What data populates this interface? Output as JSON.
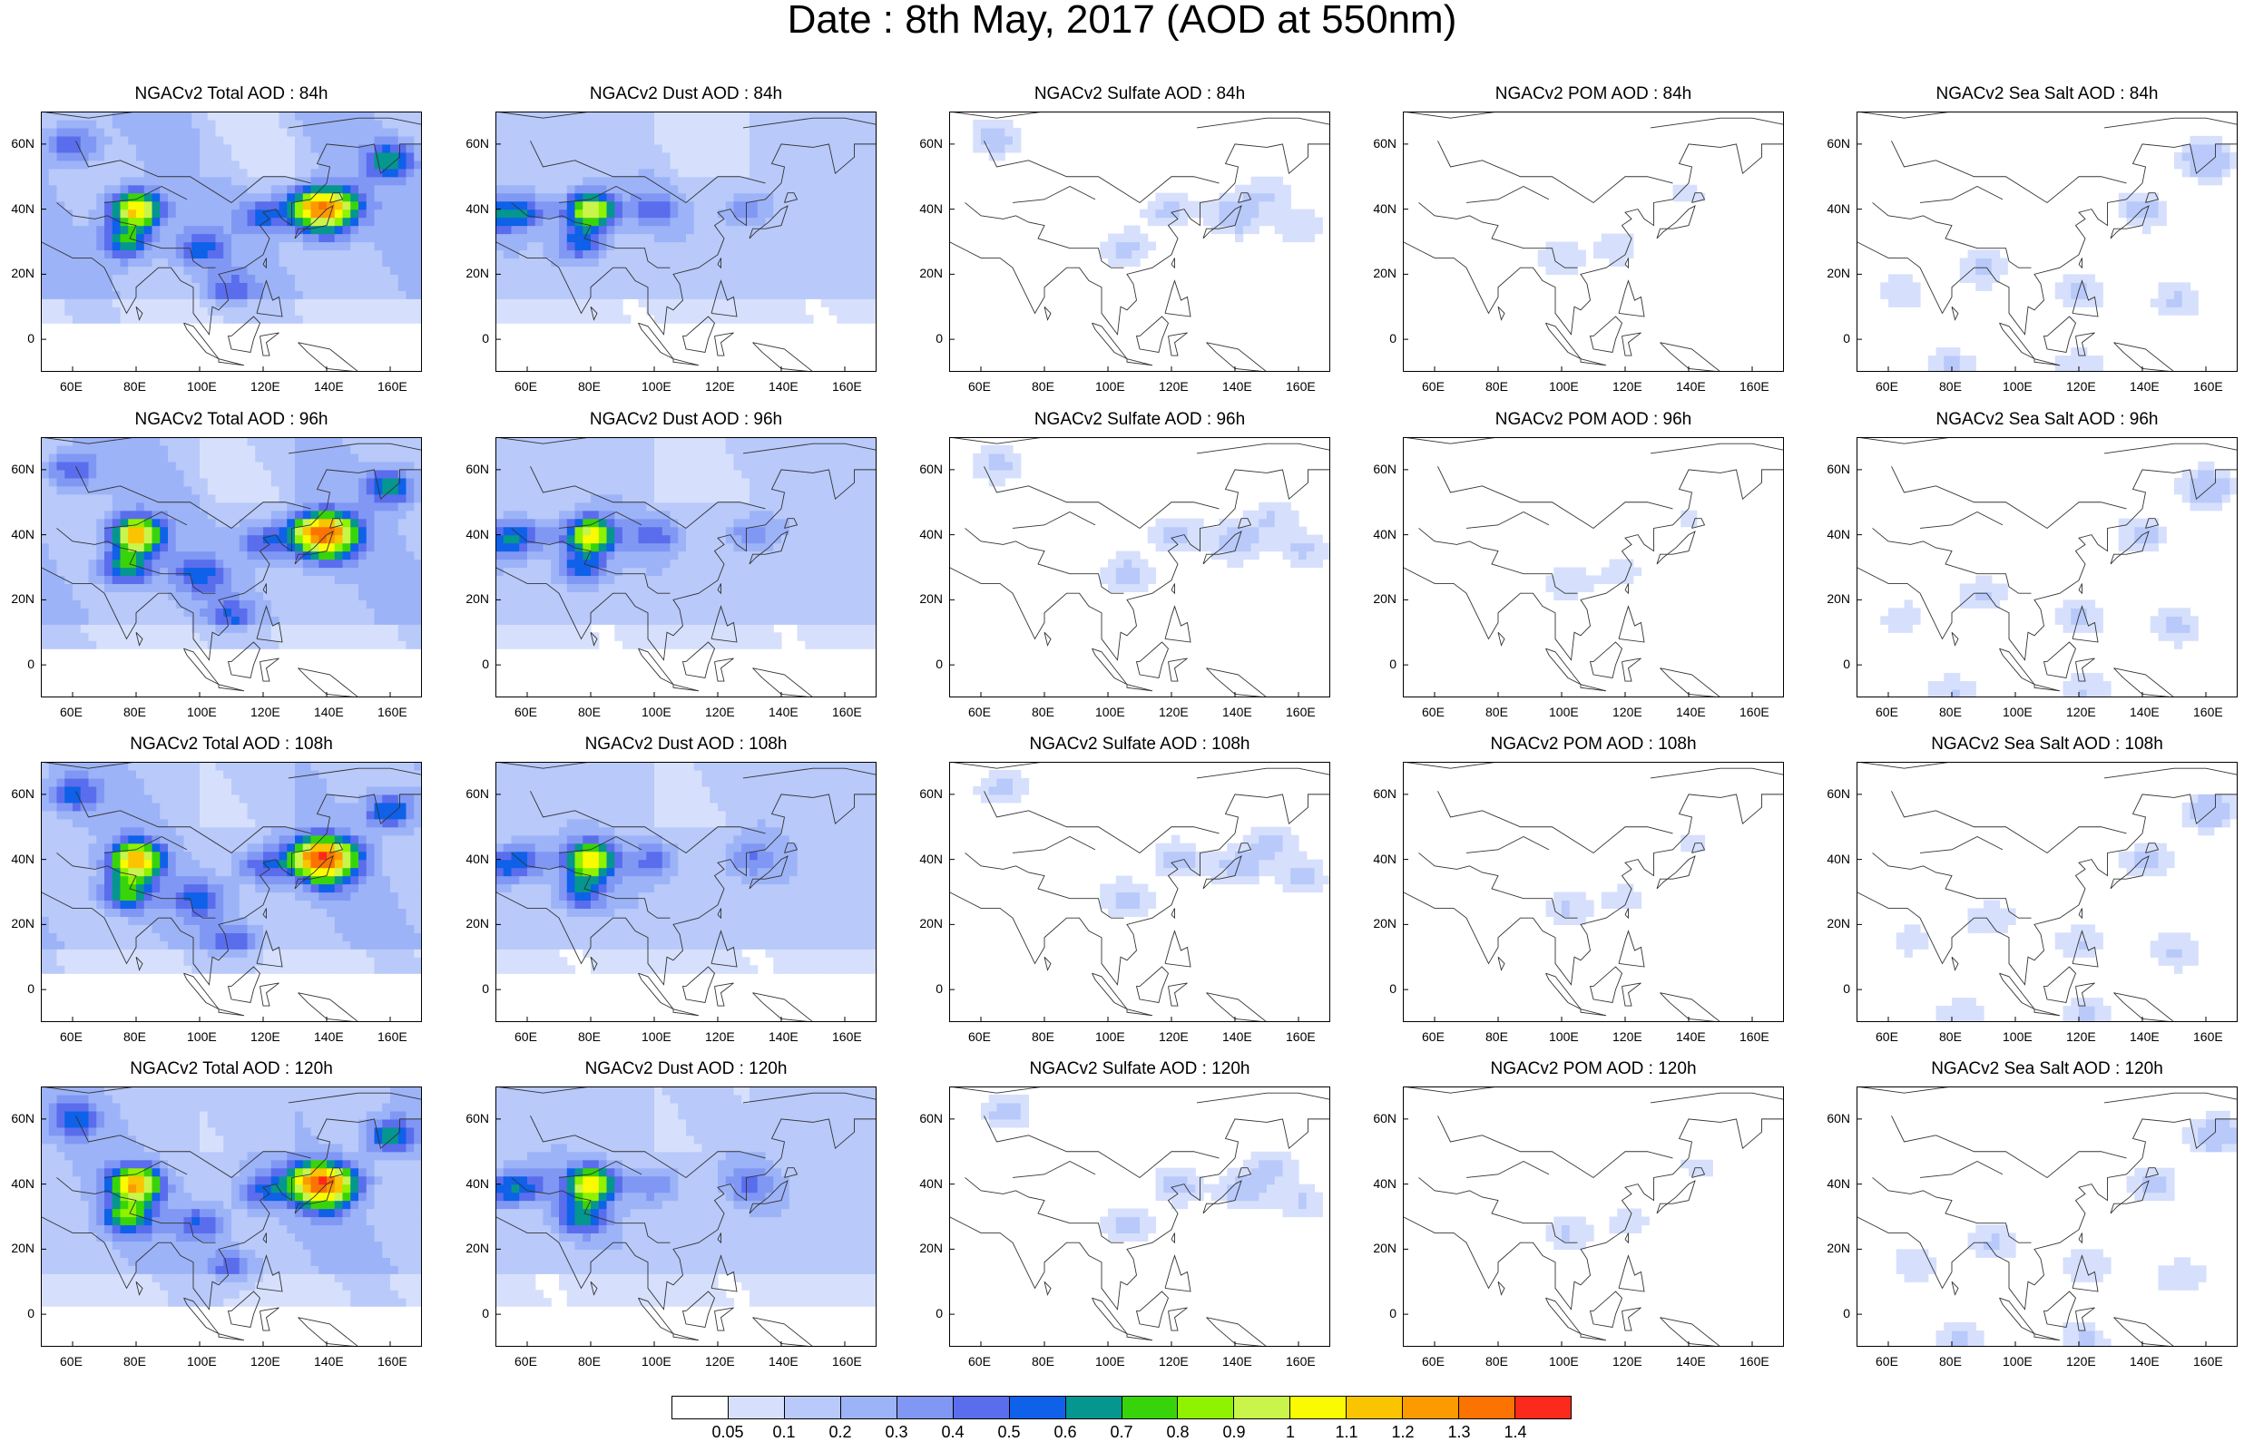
{
  "title": "Date : 8th May, 2017 (AOD at 550nm)",
  "rows": [
    {
      "hour": "84h",
      "titles": [
        "NGACv2 Total AOD : 84h",
        "NGACv2 Dust AOD : 84h",
        "NGACv2 Sulfate AOD : 84h",
        "NGACv2 POM AOD : 84h",
        "NGACv2 Sea Salt AOD : 84h"
      ]
    },
    {
      "hour": "96h",
      "titles": [
        "NGACv2 Total AOD : 96h",
        "NGACv2 Dust AOD : 96h",
        "NGACv2 Sulfate AOD : 96h",
        "NGACv2 POM AOD : 96h",
        "NGACv2 Sea Salt AOD : 96h"
      ]
    },
    {
      "hour": "108h",
      "titles": [
        "NGACv2 Total AOD : 108h",
        "NGACv2 Dust AOD : 108h",
        "NGACv2 Sulfate AOD : 108h",
        "NGACv2 POM AOD : 108h",
        "NGACv2 Sea Salt AOD : 108h"
      ]
    },
    {
      "hour": "120h",
      "titles": [
        "NGACv2 Total AOD : 120h",
        "NGACv2 Dust AOD : 120h",
        "NGACv2 Sulfate AOD : 120h",
        "NGACv2 POM AOD : 120h",
        "NGACv2 Sea Salt  AOD : 120h"
      ]
    }
  ],
  "species": [
    "Total",
    "Dust",
    "Sulfate",
    "POM",
    "Sea Salt"
  ],
  "lat_ticks": [
    "60N",
    "40N",
    "20N",
    "0"
  ],
  "lon_ticks": [
    "60E",
    "80E",
    "100E",
    "120E",
    "140E",
    "160E"
  ],
  "lat_range": [
    -10,
    70
  ],
  "lon_range": [
    50,
    170
  ],
  "colorbar": {
    "labels": [
      "0.05",
      "0.1",
      "0.2",
      "0.3",
      "0.4",
      "0.5",
      "0.6",
      "0.7",
      "0.8",
      "0.9",
      "1",
      "1.1",
      "1.2",
      "1.3",
      "1.4"
    ],
    "colors": [
      "#ffffff",
      "#d6e0fc",
      "#b8c9fa",
      "#9db3f7",
      "#8098f4",
      "#5a6ded",
      "#0e61e8",
      "#05968f",
      "#38d40a",
      "#8ef200",
      "#c9f54a",
      "#fafa00",
      "#fbc400",
      "#fb9b00",
      "#fb7300",
      "#fb2a1c"
    ]
  },
  "aod_fields": {
    "Total": {
      "base": 0.22,
      "hotspots": [
        [
          80,
          40,
          1.0
        ],
        [
          77,
          30,
          0.55
        ],
        [
          138,
          42,
          0.6
        ],
        [
          133,
          40,
          0.45
        ],
        [
          145,
          41,
          0.5
        ],
        [
          120,
          38,
          0.35
        ],
        [
          160,
          55,
          0.5
        ],
        [
          140,
          35,
          0.4
        ],
        [
          100,
          28,
          0.35
        ],
        [
          60,
          60,
          0.35
        ],
        [
          110,
          15,
          0.28
        ]
      ]
    },
    "Dust": {
      "base": 0.18,
      "hotspots": [
        [
          80,
          40,
          0.9
        ],
        [
          77,
          30,
          0.45
        ],
        [
          60,
          40,
          0.3
        ],
        [
          100,
          40,
          0.3
        ],
        [
          130,
          40,
          0.25
        ],
        [
          52,
          38,
          0.35
        ]
      ]
    },
    "Sulfate": {
      "base": 0.02,
      "hotspots": [
        [
          65,
          62,
          0.12
        ],
        [
          120,
          40,
          0.12
        ],
        [
          140,
          38,
          0.15
        ],
        [
          160,
          35,
          0.1
        ],
        [
          105,
          28,
          0.12
        ],
        [
          150,
          45,
          0.1
        ]
      ]
    },
    "POM": {
      "base": 0.01,
      "hotspots": [
        [
          100,
          25,
          0.1
        ],
        [
          118,
          28,
          0.08
        ],
        [
          140,
          45,
          0.06
        ]
      ]
    },
    "Sea Salt": {
      "base": 0.02,
      "hotspots": [
        [
          160,
          55,
          0.18
        ],
        [
          140,
          40,
          0.12
        ],
        [
          120,
          15,
          0.1
        ],
        [
          150,
          12,
          0.1
        ],
        [
          90,
          22,
          0.1
        ],
        [
          80,
          -8,
          0.1
        ],
        [
          120,
          -8,
          0.1
        ],
        [
          65,
          15,
          0.08
        ]
      ]
    }
  }
}
